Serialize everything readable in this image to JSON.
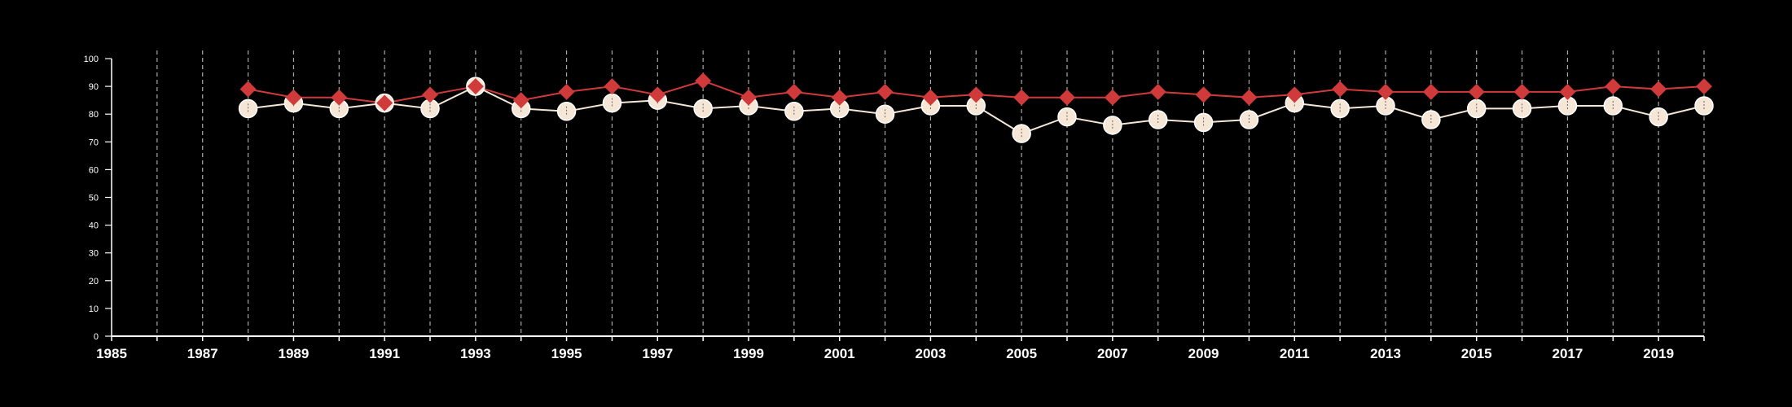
{
  "chart_data": {
    "type": "line",
    "title": "",
    "xlabel": "",
    "ylabel": "",
    "xlim": [
      1985,
      2020
    ],
    "ylim": [
      0,
      100
    ],
    "x_ticks": [
      1985,
      1987,
      1989,
      1991,
      1993,
      1995,
      1997,
      1999,
      2001,
      2003,
      2005,
      2007,
      2009,
      2011,
      2013,
      2015,
      2017,
      2019
    ],
    "x_tick_labels": [
      "1985",
      "1987",
      "1989",
      "1991",
      "1993",
      "1995",
      "1997",
      "1999",
      "2001",
      "2003",
      "2005",
      "2007",
      "2009",
      "2011",
      "2013",
      "2015",
      "2017",
      "2019"
    ],
    "y_ticks": [
      0,
      10,
      20,
      30,
      40,
      50,
      60,
      70,
      80,
      90,
      100
    ],
    "y_tick_labels": [
      "0",
      "10",
      "20",
      "30",
      "40",
      "50",
      "60",
      "70",
      "80",
      "90",
      "100"
    ],
    "grid": "vertical dashed lines at every year",
    "legend": "none",
    "x": [
      1988,
      1989,
      1990,
      1991,
      1992,
      1993,
      1994,
      1995,
      1996,
      1997,
      1998,
      1999,
      2000,
      2001,
      2002,
      2003,
      2004,
      2005,
      2006,
      2007,
      2008,
      2009,
      2010,
      2011,
      2012,
      2013,
      2014,
      2015,
      2016,
      2017,
      2018,
      2019,
      2020
    ],
    "series": [
      {
        "marker": "diamond",
        "color": "#d03a3a",
        "values": [
          89,
          86,
          86,
          84,
          87,
          90,
          85,
          88,
          90,
          87,
          92,
          86,
          88,
          86,
          88,
          86,
          87,
          86,
          86,
          86,
          88,
          87,
          86,
          87,
          89,
          88,
          88,
          88,
          88,
          88,
          90,
          89,
          90
        ]
      },
      {
        "marker": "circle",
        "color": "#f5e6d6",
        "values": [
          82,
          84,
          82,
          84,
          82,
          90,
          82,
          81,
          84,
          85,
          82,
          83,
          81,
          82,
          80,
          83,
          83,
          73,
          79,
          76,
          78,
          77,
          78,
          84,
          82,
          83,
          78,
          82,
          82,
          83,
          83,
          79,
          83
        ]
      }
    ]
  },
  "style": {
    "background": "#000000",
    "axis_color": "#ffffff",
    "grid_color": "#aaaaaa"
  }
}
